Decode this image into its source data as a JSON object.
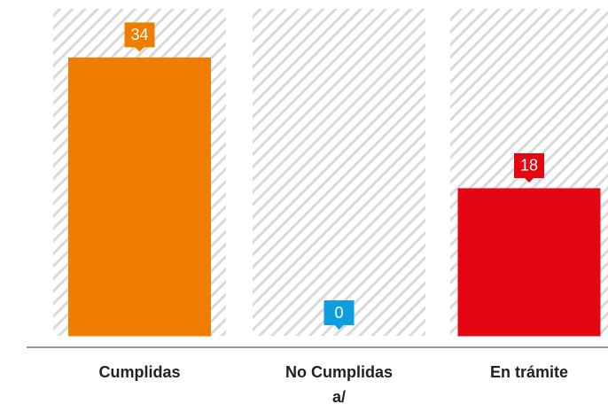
{
  "chart_data": {
    "type": "bar",
    "categories": [
      "Cumplidas",
      "No Cumplidas a/",
      "En trámite"
    ],
    "values": [
      34,
      0,
      18
    ],
    "colors": [
      "#f07d00",
      "#0d9ee0",
      "#e30613"
    ],
    "ylim": [
      0,
      40
    ]
  }
}
